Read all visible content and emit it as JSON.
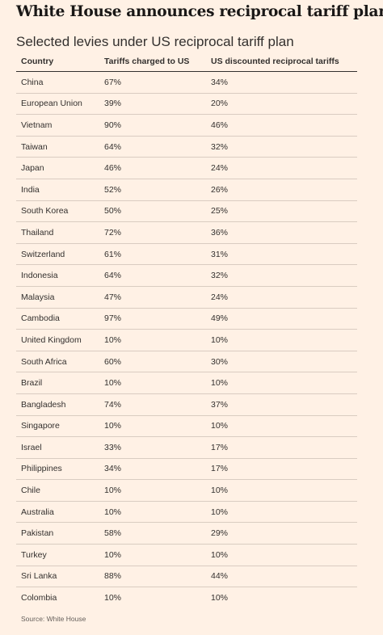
{
  "title": "White House announces reciprocal tariff plan",
  "subtitle": "Selected levies under US reciprocal tariff plan",
  "source": "Source: White House",
  "chart_data": {
    "type": "table",
    "title": "White House announces reciprocal tariff plan",
    "subtitle": "Selected levies under US reciprocal tariff plan",
    "columns": [
      "Country",
      "Tariffs charged to US",
      "US discounted reciprocal tariffs"
    ],
    "rows": [
      [
        "China",
        "67%",
        "34%"
      ],
      [
        "European Union",
        "39%",
        "20%"
      ],
      [
        "Vietnam",
        "90%",
        "46%"
      ],
      [
        "Taiwan",
        "64%",
        "32%"
      ],
      [
        "Japan",
        "46%",
        "24%"
      ],
      [
        "India",
        "52%",
        "26%"
      ],
      [
        "South Korea",
        "50%",
        "25%"
      ],
      [
        "Thailand",
        "72%",
        "36%"
      ],
      [
        "Switzerland",
        "61%",
        "31%"
      ],
      [
        "Indonesia",
        "64%",
        "32%"
      ],
      [
        "Malaysia",
        "47%",
        "24%"
      ],
      [
        "Cambodia",
        "97%",
        "49%"
      ],
      [
        "United Kingdom",
        "10%",
        "10%"
      ],
      [
        "South Africa",
        "60%",
        "30%"
      ],
      [
        "Brazil",
        "10%",
        "10%"
      ],
      [
        "Bangladesh",
        "74%",
        "37%"
      ],
      [
        "Singapore",
        "10%",
        "10%"
      ],
      [
        "Israel",
        "33%",
        "17%"
      ],
      [
        "Philippines",
        "34%",
        "17%"
      ],
      [
        "Chile",
        "10%",
        "10%"
      ],
      [
        "Australia",
        "10%",
        "10%"
      ],
      [
        "Pakistan",
        "58%",
        "29%"
      ],
      [
        "Turkey",
        "10%",
        "10%"
      ],
      [
        "Sri Lanka",
        "88%",
        "44%"
      ],
      [
        "Colombia",
        "10%",
        "10%"
      ]
    ],
    "source": "Source: White House"
  },
  "colors": {
    "background": "#FFF1E5",
    "text": "#33302E",
    "rule": "#D9CCC1"
  }
}
